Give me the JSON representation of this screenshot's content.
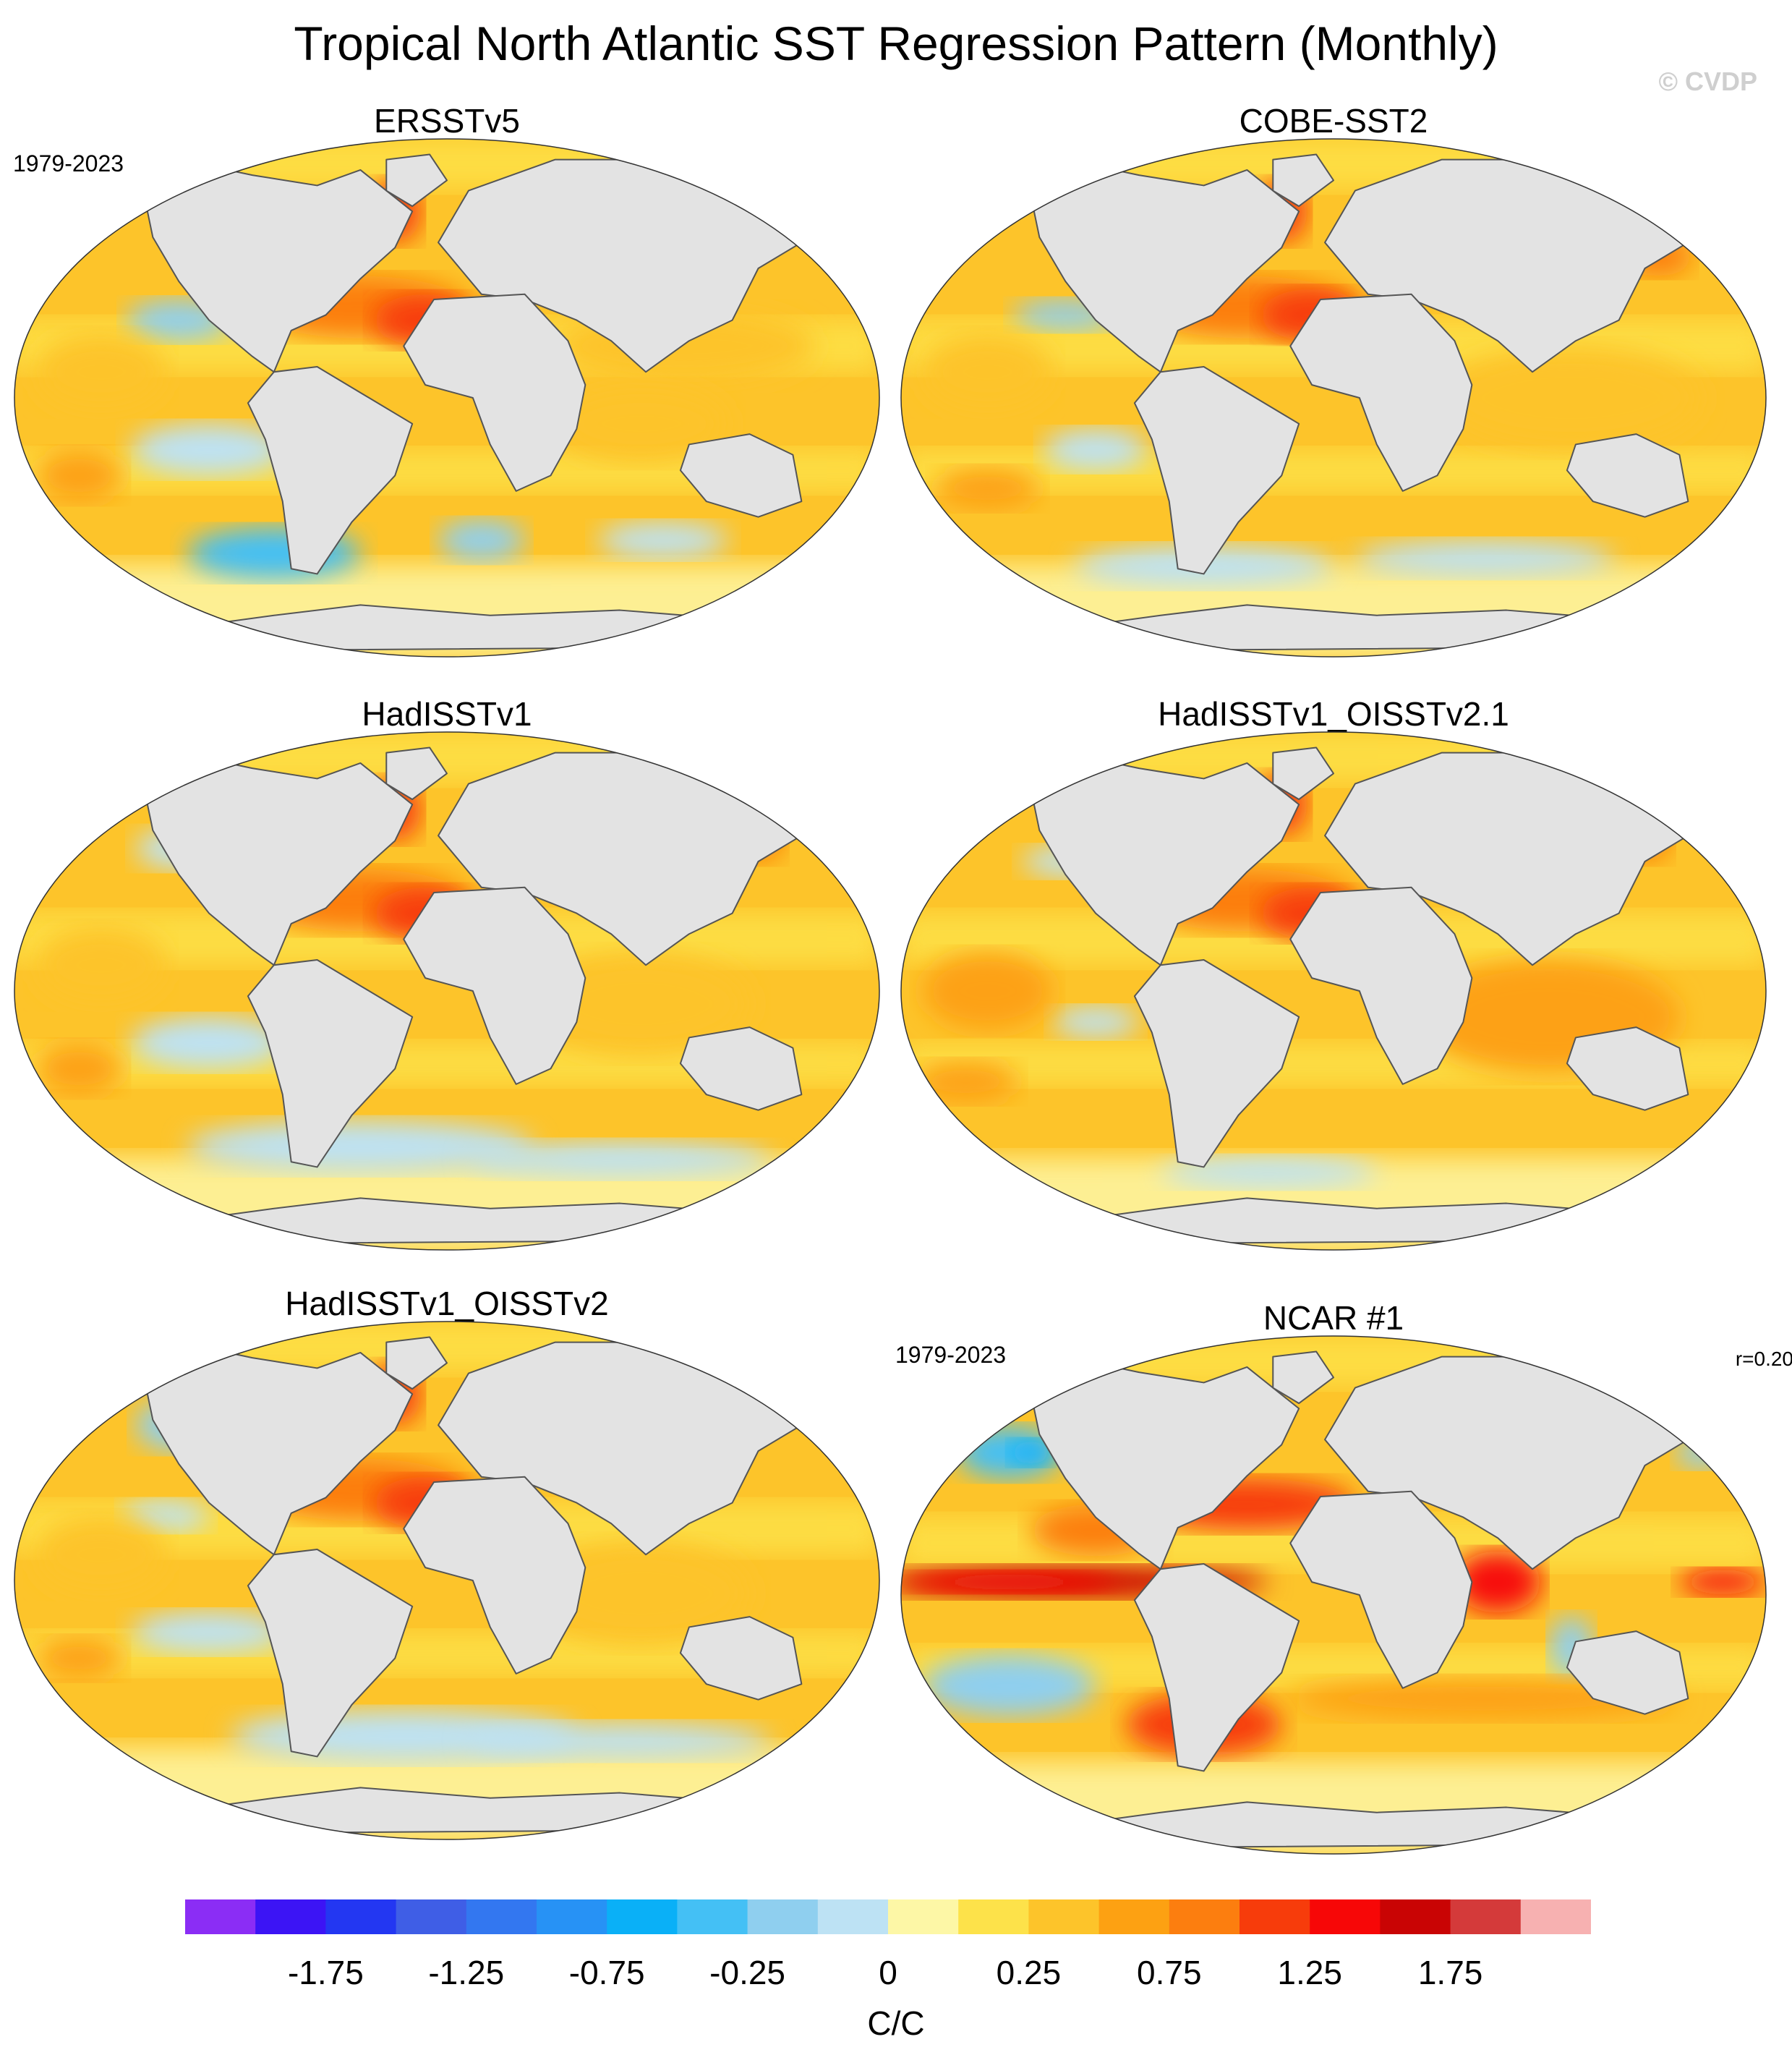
{
  "title": "Tropical North Atlantic SST Regression Pattern (Monthly)",
  "watermark": "© CVDP",
  "panels": [
    {
      "name": "ERSSTv5",
      "period": "1979-2023",
      "corr": "",
      "variant": "obs-a"
    },
    {
      "name": "COBE-SST2",
      "period": "",
      "corr": "",
      "variant": "obs-b"
    },
    {
      "name": "HadISSTv1",
      "period": "",
      "corr": "",
      "variant": "obs-c"
    },
    {
      "name": "HadISSTv1_OISSTv2.1",
      "period": "",
      "corr": "",
      "variant": "obs-d"
    },
    {
      "name": "HadISSTv1_OISSTv2",
      "period": "",
      "corr": "",
      "variant": "obs-e"
    },
    {
      "name": "NCAR #1",
      "period": "1979-2023",
      "corr": "r=0.20",
      "variant": "model"
    }
  ],
  "colorbar": {
    "colors": [
      "#8b2df5",
      "#3c14f5",
      "#2337f2",
      "#3f5ee6",
      "#3377f0",
      "#2792f5",
      "#0ab0f7",
      "#44c0f5",
      "#8fcfef",
      "#bde2f4",
      "#fdf7a6",
      "#fde24a",
      "#fdc42a",
      "#fda112",
      "#fc7e0f",
      "#f73c0b",
      "#f70707",
      "#c90404",
      "#d43a3a",
      "#f7b1b1"
    ],
    "tick_labels": [
      "-1.75",
      "-1.25",
      "-0.75",
      "-0.25",
      "0",
      "0.25",
      "0.75",
      "1.25",
      "1.75"
    ],
    "units": "C/C"
  },
  "land_color": "#e3e3e3",
  "coast_color": "#555555"
}
